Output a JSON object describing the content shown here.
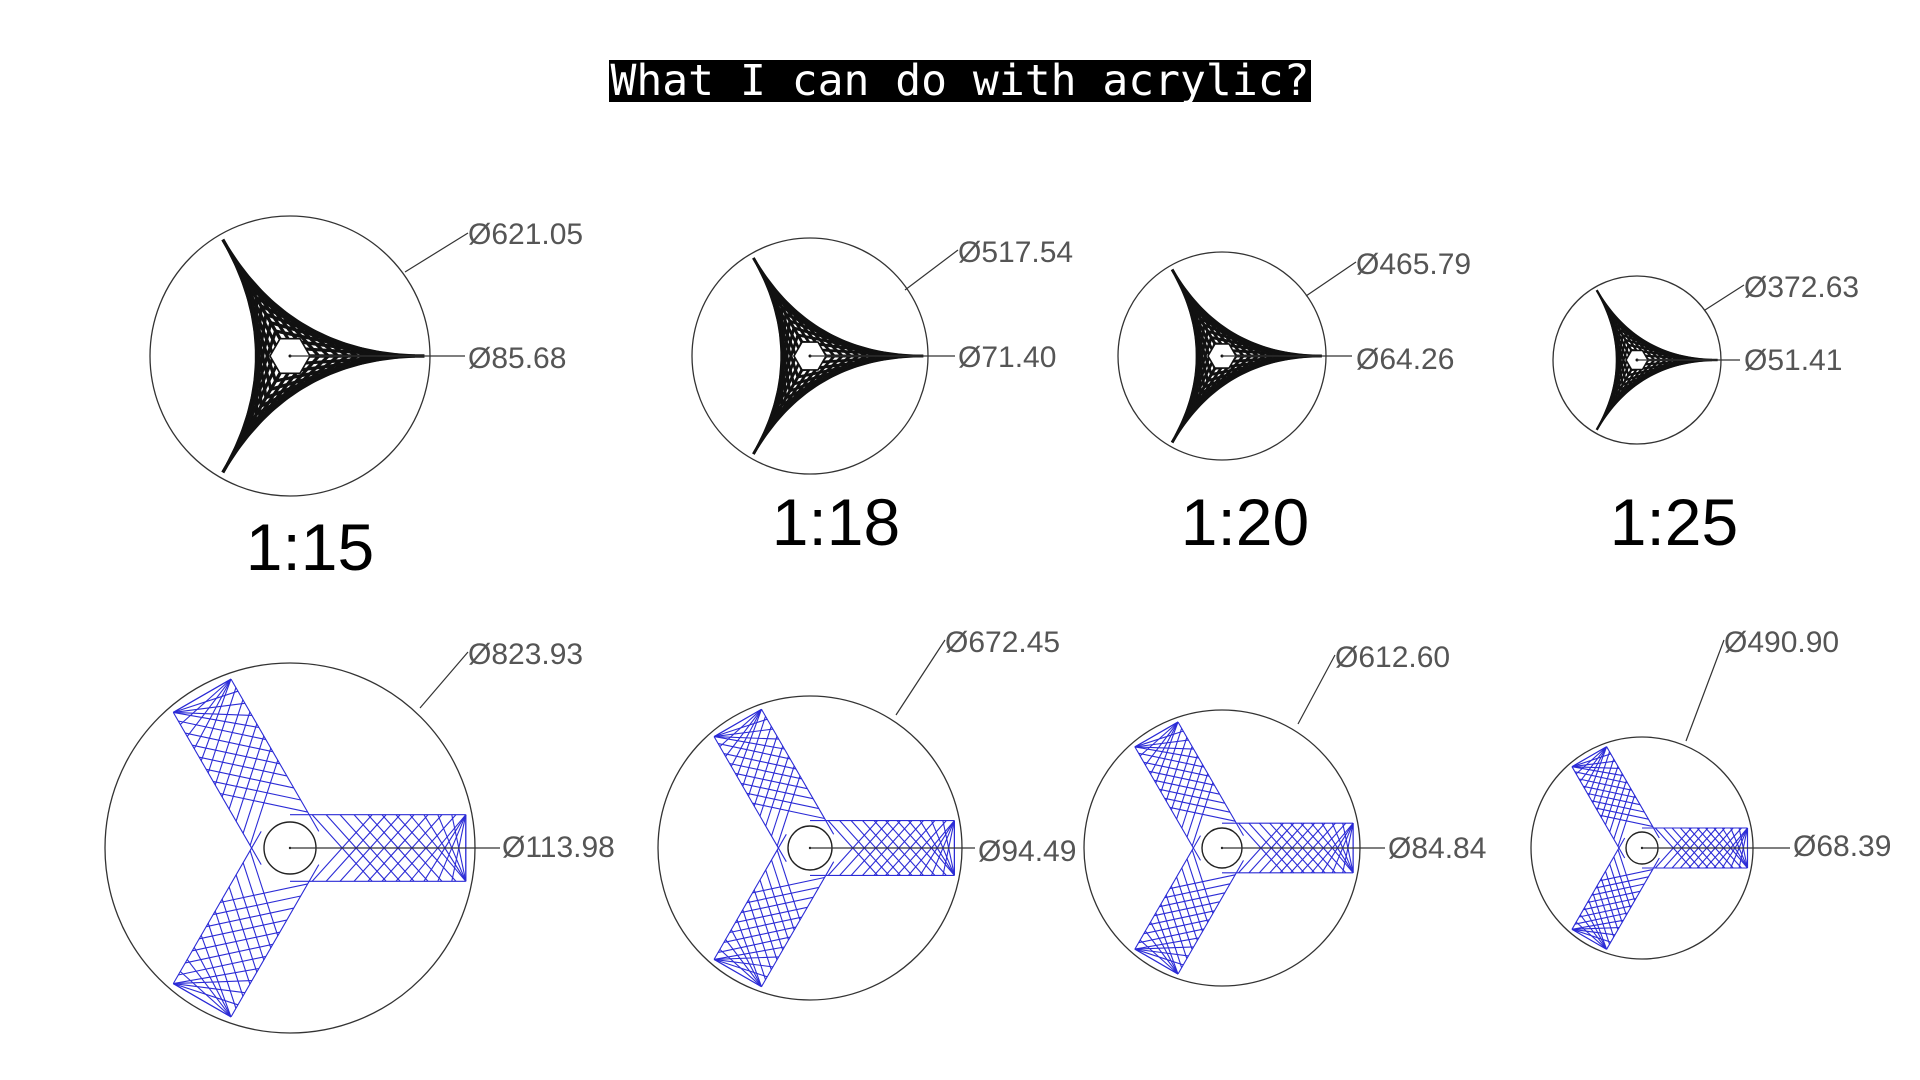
{
  "title": "What I can do with acrylic?",
  "colors": {
    "black_pattern": "#111111",
    "blue_pattern": "#2b2bd6",
    "outline": "#333333",
    "dim_text": "#555555"
  },
  "top_row": [
    {
      "scale": "1:15",
      "outer": "Ø621.05",
      "inner": "Ø85.68"
    },
    {
      "scale": "1:18",
      "outer": "Ø517.54",
      "inner": "Ø71.40"
    },
    {
      "scale": "1:20",
      "outer": "Ø465.79",
      "inner": "Ø64.26"
    },
    {
      "scale": "1:25",
      "outer": "Ø372.63",
      "inner": "Ø51.41"
    }
  ],
  "bottom_row": [
    {
      "outer": "Ø823.93",
      "inner": "Ø113.98"
    },
    {
      "outer": "Ø672.45",
      "inner": "Ø94.49"
    },
    {
      "outer": "Ø612.60",
      "inner": "Ø84.84"
    },
    {
      "outer": "Ø490.90",
      "inner": "Ø68.39"
    }
  ]
}
